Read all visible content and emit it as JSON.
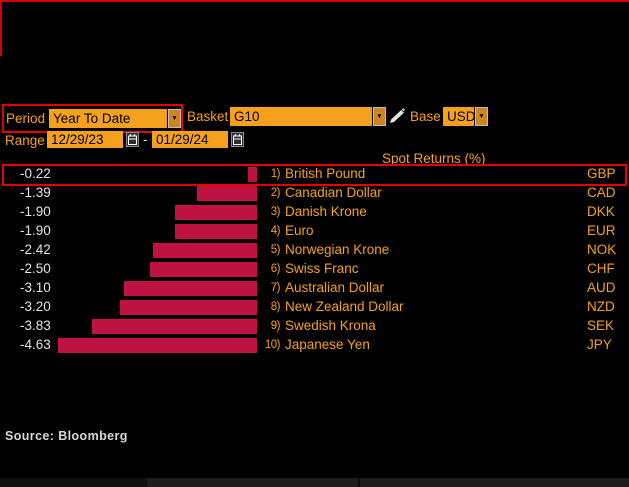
{
  "controls": {
    "period_label": "Period",
    "period_value": "Year To Date",
    "basket_label": "Basket",
    "basket_value": "G10",
    "base_label": "Base",
    "base_value": "USD",
    "range_label": "Range",
    "range_start": "12/29/23",
    "range_separator": "-",
    "range_end": "01/29/24",
    "dropdown_arrow": "▼"
  },
  "chart_data": {
    "type": "bar",
    "orientation": "horizontal",
    "title": "Spot Returns (%)",
    "xlim": [
      -5,
      0
    ],
    "bar_color": "#be1340",
    "value_color": "#e2e2e2",
    "label_color": "#f7a01e",
    "highlight_color": "#e60000",
    "highlighted_row": 0,
    "rows": [
      {
        "rank": "1)",
        "name": "British Pound",
        "code": "GBP",
        "value": -0.22
      },
      {
        "rank": "2)",
        "name": "Canadian Dollar",
        "code": "CAD",
        "value": -1.39
      },
      {
        "rank": "3)",
        "name": "Danish Krone",
        "code": "DKK",
        "value": -1.9
      },
      {
        "rank": "4)",
        "name": "Euro",
        "code": "EUR",
        "value": -1.9
      },
      {
        "rank": "5)",
        "name": "Norwegian Krone",
        "code": "NOK",
        "value": -2.42
      },
      {
        "rank": "6)",
        "name": "Swiss Franc",
        "code": "CHF",
        "value": -2.5
      },
      {
        "rank": "7)",
        "name": "Australian Dollar",
        "code": "AUD",
        "value": -3.1
      },
      {
        "rank": "8)",
        "name": "New Zealand Dollar",
        "code": "NZD",
        "value": -3.2
      },
      {
        "rank": "9)",
        "name": "Swedish Krona",
        "code": "SEK",
        "value": -3.83
      },
      {
        "rank": "10)",
        "name": "Japanese Yen",
        "code": "JPY",
        "value": -4.63
      }
    ]
  },
  "footer": {
    "source": "Source: Bloomberg"
  }
}
